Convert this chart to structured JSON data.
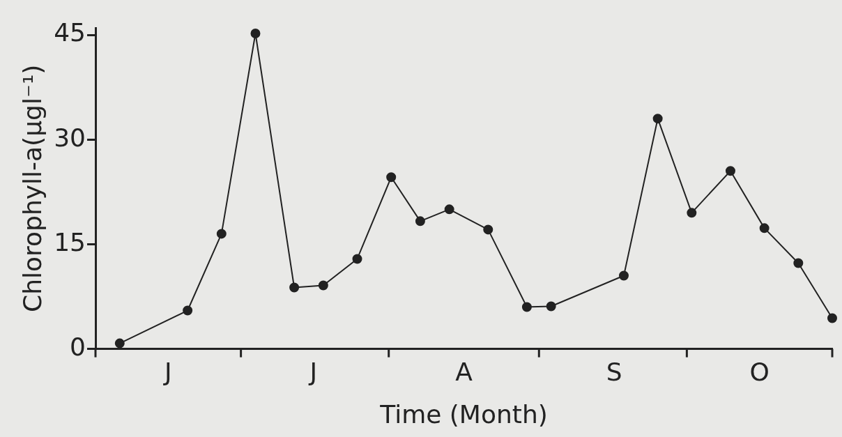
{
  "chart_data": {
    "type": "line",
    "xlabel": "Time (Month)",
    "ylabel": "Chlorophyll-a(µgl⁻¹)",
    "categories": [
      null,
      null,
      null,
      null,
      null,
      null,
      null,
      null,
      null,
      null,
      null,
      null,
      null,
      null,
      null,
      "J",
      null,
      null,
      null,
      null,
      null,
      null,
      null,
      null,
      null,
      null,
      null,
      null,
      null,
      null,
      null,
      null,
      null,
      null,
      null,
      null,
      null,
      null,
      null,
      null,
      null,
      null,
      null,
      null,
      null,
      "J",
      null,
      null,
      null,
      null,
      null,
      null,
      null,
      null,
      null,
      null,
      null,
      null,
      null,
      null,
      null,
      null,
      null,
      null,
      null,
      null,
      null,
      null,
      null,
      null,
      null,
      null,
      null,
      null,
      null,
      null,
      "A",
      null,
      null,
      null,
      null,
      null,
      null,
      null,
      null,
      null,
      null,
      null,
      null,
      null,
      null,
      null,
      null,
      null,
      null,
      null,
      null,
      null,
      null,
      null,
      null,
      null,
      null,
      null,
      null,
      null,
      null,
      "S",
      null,
      null,
      null,
      null,
      null,
      null,
      null,
      null,
      null,
      null,
      null,
      null,
      null,
      null,
      null,
      null,
      null,
      null,
      null,
      null,
      null,
      null,
      null,
      null,
      null,
      null,
      null,
      null,
      null,
      "O",
      null,
      null,
      null,
      null,
      null,
      null,
      null,
      null,
      null,
      null,
      null,
      null,
      null,
      null,
      null
    ],
    "values": [
      null,
      null,
      null,
      null,
      null,
      0.8,
      null,
      null,
      null,
      null,
      null,
      null,
      null,
      null,
      null,
      null,
      null,
      null,
      null,
      5.5,
      null,
      null,
      null,
      null,
      null,
      null,
      16.5,
      null,
      null,
      null,
      null,
      null,
      null,
      45.2,
      null,
      null,
      null,
      null,
      null,
      null,
      null,
      8.8,
      null,
      null,
      null,
      null,
      null,
      9.1,
      null,
      null,
      null,
      null,
      null,
      null,
      12.9,
      null,
      null,
      null,
      null,
      null,
      null,
      24.6,
      null,
      null,
      null,
      null,
      null,
      18.3,
      null,
      null,
      null,
      null,
      null,
      20.0,
      null,
      null,
      null,
      null,
      null,
      null,
      null,
      17.1,
      null,
      null,
      null,
      null,
      null,
      null,
      null,
      6.0,
      null,
      null,
      null,
      null,
      6.1,
      null,
      null,
      null,
      null,
      null,
      null,
      null,
      null,
      null,
      null,
      null,
      null,
      null,
      null,
      10.5,
      null,
      null,
      null,
      null,
      null,
      null,
      33.0,
      null,
      null,
      null,
      null,
      null,
      null,
      19.5,
      null,
      null,
      null,
      null,
      null,
      null,
      null,
      25.5,
      null,
      null,
      null,
      null,
      null,
      null,
      17.3,
      null,
      null,
      null,
      null,
      null,
      null,
      12.3,
      null,
      null,
      null,
      null,
      null,
      null,
      4.4
    ],
    "color": "#222222",
    "marker": "circle",
    "line_style": "solid",
    "grid": false,
    "legend": false,
    "ylim": [
      0,
      46
    ],
    "yticks": [
      0,
      15,
      30,
      45
    ]
  }
}
